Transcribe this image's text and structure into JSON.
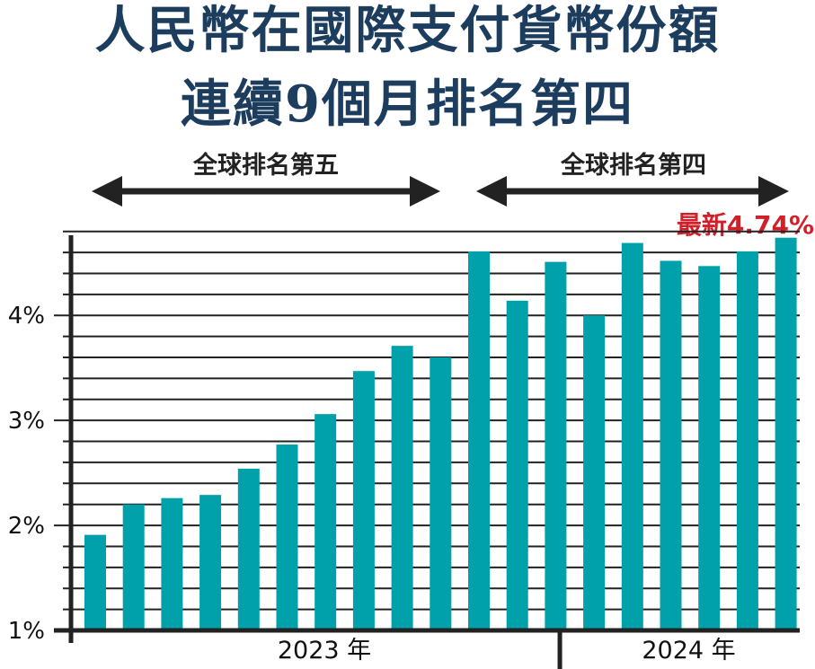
{
  "title": {
    "line1": "人民幣在國際支付貨幣份額",
    "line2": "連續9個月排名第四"
  },
  "ranges": [
    {
      "label": "全球排名第五"
    },
    {
      "label": "全球排名第四"
    }
  ],
  "annotation": "最新4.74%",
  "colors": {
    "bar": "#00a1ab",
    "title": "#1d3d5e",
    "annotation": "#d2202a",
    "arrow": "#222222"
  },
  "chart_data": {
    "type": "bar",
    "values": [
      1.91,
      2.2,
      2.26,
      2.29,
      2.54,
      2.77,
      3.06,
      3.47,
      3.71,
      3.6,
      4.61,
      4.14,
      4.51,
      4.0,
      4.69,
      4.52,
      4.47,
      4.61,
      4.74
    ],
    "ylim": [
      1,
      4.9
    ],
    "y_ticks": [
      {
        "value": 1,
        "label": "1%"
      },
      {
        "value": 2,
        "label": "2%"
      },
      {
        "value": 3,
        "label": "3%"
      },
      {
        "value": 4,
        "label": "4%"
      }
    ],
    "gridlines_step": 0.2,
    "groups": [
      {
        "label": "2023 年",
        "count": 12
      },
      {
        "label": "2024 年",
        "count": 7
      }
    ]
  }
}
